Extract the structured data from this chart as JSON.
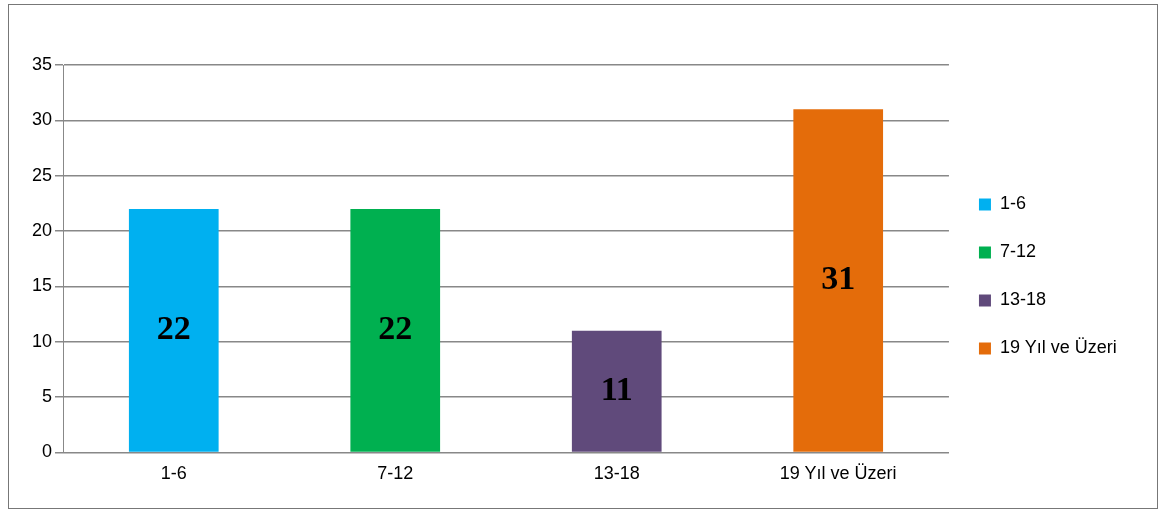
{
  "chart_data": {
    "type": "bar",
    "categories": [
      "1-6",
      "7-12",
      "13-18",
      "19 Yıl ve Üzeri"
    ],
    "series": [
      {
        "name": "1-6",
        "color": "#00b0f0",
        "values": [
          22,
          null,
          null,
          null
        ]
      },
      {
        "name": "7-12",
        "color": "#00b050",
        "values": [
          null,
          22,
          null,
          null
        ]
      },
      {
        "name": "13-18",
        "color": "#604a7b",
        "values": [
          null,
          null,
          11,
          null
        ]
      },
      {
        "name": "19 Yıl ve Üzeri",
        "color": "#e46c0a",
        "values": [
          null,
          null,
          null,
          31
        ]
      }
    ],
    "ylim": [
      0,
      35
    ],
    "yticks": [
      0,
      5,
      10,
      15,
      20,
      25,
      30,
      35
    ],
    "grid": "y",
    "legend": "right",
    "data_labels": true
  }
}
